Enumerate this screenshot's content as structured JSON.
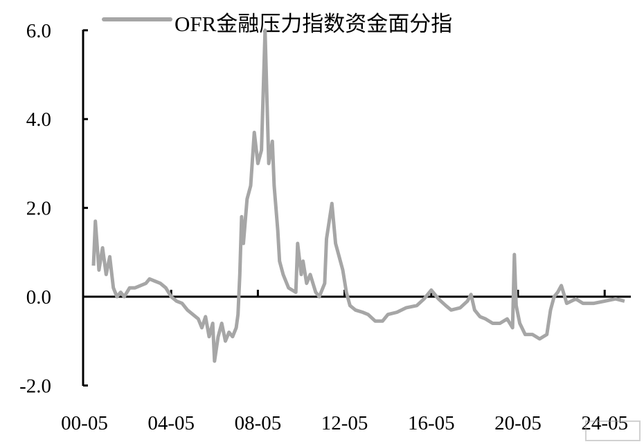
{
  "chart_data": {
    "type": "line",
    "title": "",
    "xlabel": "",
    "ylabel": "",
    "ylim": [
      -2.0,
      6.0
    ],
    "yticks": [
      "-2.0",
      "0.0",
      "2.0",
      "4.0",
      "6.0"
    ],
    "xticks": [
      "00-05",
      "04-05",
      "08-05",
      "12-05",
      "16-05",
      "20-05",
      "24-05"
    ],
    "grid": false,
    "legend_position": "top",
    "series": [
      {
        "name": "OFR金融压力指数资金面分指",
        "color": "#a6a6a6",
        "points": [
          [
            "2000-10",
            0.7
          ],
          [
            "2000-11",
            1.7
          ],
          [
            "2001-01",
            0.6
          ],
          [
            "2001-03",
            1.1
          ],
          [
            "2001-05",
            0.5
          ],
          [
            "2001-07",
            0.9
          ],
          [
            "2001-09",
            0.2
          ],
          [
            "2001-11",
            0.0
          ],
          [
            "2002-01",
            0.1
          ],
          [
            "2002-03",
            0.0
          ],
          [
            "2002-06",
            0.2
          ],
          [
            "2002-09",
            0.2
          ],
          [
            "2002-12",
            0.25
          ],
          [
            "2003-03",
            0.3
          ],
          [
            "2003-05",
            0.4
          ],
          [
            "2003-08",
            0.35
          ],
          [
            "2003-11",
            0.3
          ],
          [
            "2004-02",
            0.2
          ],
          [
            "2004-05",
            0.0
          ],
          [
            "2004-08",
            -0.1
          ],
          [
            "2004-11",
            -0.15
          ],
          [
            "2005-02",
            -0.3
          ],
          [
            "2005-05",
            -0.4
          ],
          [
            "2005-08",
            -0.5
          ],
          [
            "2005-10",
            -0.7
          ],
          [
            "2005-12",
            -0.45
          ],
          [
            "2006-02",
            -0.9
          ],
          [
            "2006-04",
            -0.6
          ],
          [
            "2006-05",
            -1.45
          ],
          [
            "2006-07",
            -0.9
          ],
          [
            "2006-09",
            -0.6
          ],
          [
            "2006-11",
            -1.0
          ],
          [
            "2007-01",
            -0.8
          ],
          [
            "2007-03",
            -0.9
          ],
          [
            "2007-05",
            -0.7
          ],
          [
            "2007-06",
            -0.4
          ],
          [
            "2007-07",
            0.5
          ],
          [
            "2007-08",
            1.8
          ],
          [
            "2007-09",
            1.2
          ],
          [
            "2007-11",
            2.2
          ],
          [
            "2008-01",
            2.5
          ],
          [
            "2008-03",
            3.7
          ],
          [
            "2008-05",
            3.0
          ],
          [
            "2008-07",
            3.3
          ],
          [
            "2008-09",
            6.0
          ],
          [
            "2008-10",
            4.5
          ],
          [
            "2008-11",
            3.0
          ],
          [
            "2009-01",
            3.5
          ],
          [
            "2009-02",
            2.5
          ],
          [
            "2009-04",
            1.5
          ],
          [
            "2009-05",
            0.8
          ],
          [
            "2009-07",
            0.5
          ],
          [
            "2009-10",
            0.2
          ],
          [
            "2010-02",
            0.1
          ],
          [
            "2010-03",
            1.2
          ],
          [
            "2010-05",
            0.5
          ],
          [
            "2010-06",
            0.8
          ],
          [
            "2010-08",
            0.3
          ],
          [
            "2010-10",
            0.5
          ],
          [
            "2011-01",
            0.1
          ],
          [
            "2011-03",
            0.0
          ],
          [
            "2011-06",
            0.3
          ],
          [
            "2011-07",
            1.3
          ],
          [
            "2011-10",
            2.1
          ],
          [
            "2011-12",
            1.2
          ],
          [
            "2012-02",
            0.9
          ],
          [
            "2012-04",
            0.6
          ],
          [
            "2012-06",
            0.1
          ],
          [
            "2012-08",
            -0.2
          ],
          [
            "2012-11",
            -0.3
          ],
          [
            "2013-03",
            -0.35
          ],
          [
            "2013-06",
            -0.4
          ],
          [
            "2013-10",
            -0.55
          ],
          [
            "2014-02",
            -0.55
          ],
          [
            "2014-05",
            -0.4
          ],
          [
            "2014-10",
            -0.35
          ],
          [
            "2015-03",
            -0.25
          ],
          [
            "2015-09",
            -0.2
          ],
          [
            "2016-01",
            -0.05
          ],
          [
            "2016-05",
            0.15
          ],
          [
            "2016-09",
            -0.05
          ],
          [
            "2017-01",
            -0.2
          ],
          [
            "2017-04",
            -0.3
          ],
          [
            "2017-09",
            -0.25
          ],
          [
            "2018-01",
            -0.1
          ],
          [
            "2018-03",
            0.05
          ],
          [
            "2018-05",
            -0.3
          ],
          [
            "2018-08",
            -0.45
          ],
          [
            "2018-11",
            -0.5
          ],
          [
            "2019-03",
            -0.6
          ],
          [
            "2019-07",
            -0.6
          ],
          [
            "2019-11",
            -0.5
          ],
          [
            "2020-02",
            -0.7
          ],
          [
            "2020-03",
            0.95
          ],
          [
            "2020-04",
            -0.2
          ],
          [
            "2020-06",
            -0.6
          ],
          [
            "2020-09",
            -0.85
          ],
          [
            "2021-01",
            -0.85
          ],
          [
            "2021-05",
            -0.95
          ],
          [
            "2021-09",
            -0.85
          ],
          [
            "2021-11",
            -0.3
          ],
          [
            "2022-01",
            0.0
          ],
          [
            "2022-03",
            0.1
          ],
          [
            "2022-05",
            0.25
          ],
          [
            "2022-08",
            -0.15
          ],
          [
            "2023-01",
            -0.05
          ],
          [
            "2023-05",
            -0.15
          ],
          [
            "2023-11",
            -0.15
          ],
          [
            "2024-05",
            -0.1
          ],
          [
            "2024-11",
            -0.05
          ],
          [
            "2025-04",
            -0.1
          ]
        ]
      }
    ]
  }
}
